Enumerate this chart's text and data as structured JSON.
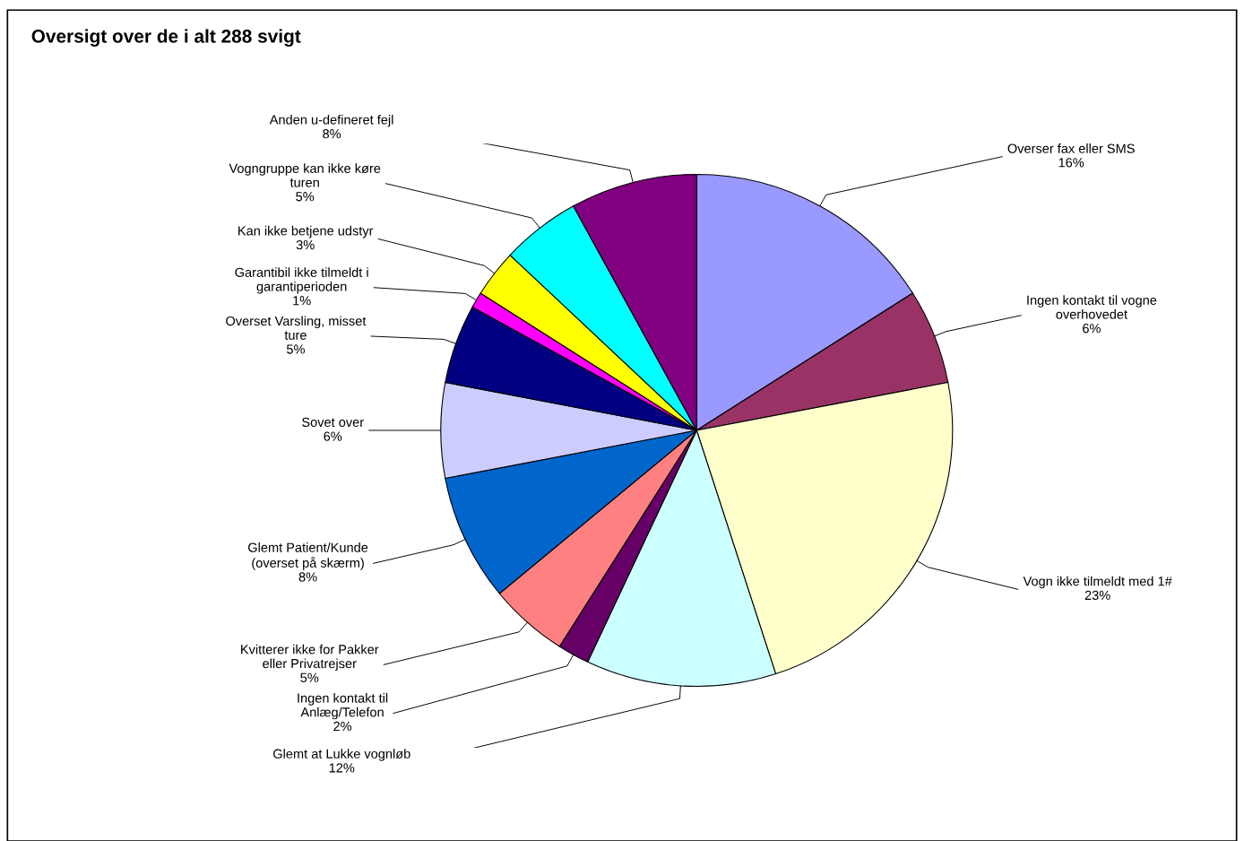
{
  "chart_data": {
    "type": "pie",
    "title": "Oversigt over de i alt 288 svigt",
    "categories": [
      "Overser fax eller SMS",
      "Ingen kontakt til vogne overhovedet",
      "Vogn ikke tilmeldt med 1#",
      "Glemt at Lukke vognløb",
      "Ingen kontakt til Anlæg/Telefon",
      "Kvitterer ikke for Pakker eller Privatrejser",
      "Glemt Patient/Kunde (overset på skærm)",
      "Sovet over",
      "Overset Varsling, misset ture",
      "Garantibil ikke tilmeldt i garantiperioden",
      "Kan ikke betjene udstyr",
      "Vogngruppe kan ikke køre turen",
      "Anden u-defineret fejl"
    ],
    "values": [
      16,
      6,
      23,
      12,
      2,
      5,
      8,
      6,
      5,
      1,
      3,
      5,
      8
    ],
    "colors": [
      "#9999ff",
      "#993366",
      "#ffffcc",
      "#ccffff",
      "#660066",
      "#ff8080",
      "#0066cc",
      "#ccccff",
      "#000080",
      "#ff00ff",
      "#ffff00",
      "#00ffff",
      "#800080"
    ],
    "value_labels": [
      "16%",
      "6%",
      "23%",
      "12%",
      "2%",
      "5%",
      "8%",
      "6%",
      "5%",
      "1%",
      "3%",
      "5%",
      "8%"
    ],
    "legend": false
  }
}
